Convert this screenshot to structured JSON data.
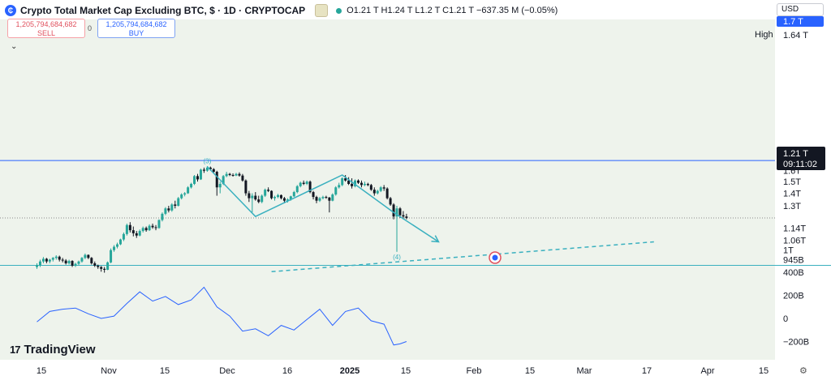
{
  "header": {
    "logo_icon": "crypto-cap-logo-icon",
    "title": "Crypto Total Market Cap Excluding BTC, $ · 1D · CRYPTOCAP",
    "ohlc": "O1.21 T  H1.24 T  L1.2 T  C1.21 T  −637.35 M (−0.05%)"
  },
  "trade": {
    "sell_value": "1,205,794,684,682",
    "sell_label": "SELL",
    "spread": "0",
    "buy_value": "1,205,794,684,682",
    "buy_label": "BUY"
  },
  "currency": "USD",
  "branding": {
    "mark": "17",
    "name": "TradingView"
  },
  "colors": {
    "up": "#26a69a",
    "down": "#131722",
    "trend": "#3ab0bf",
    "background": "#eef3ec",
    "axis_text": "#131722",
    "current_price_bg": "#131722"
  },
  "chart_data": [
    {
      "type": "candlestick",
      "price_axis": {
        "ticks": [
          "1.6T",
          "1.5T",
          "1.4T",
          "1.3T",
          "1.14T",
          "1.06T",
          "1T",
          "945B"
        ],
        "scale": "log"
      },
      "price_labels": {
        "top_clipped": "1.7 T",
        "high_value": "1.64 T",
        "high_text": "High",
        "current_price": "1.21 T",
        "countdown": "09:11:02"
      },
      "x_axis": {
        "ticks": [
          "15",
          "Nov",
          "15",
          "Dec",
          "16",
          "2025",
          "15",
          "Feb",
          "15",
          "Mar",
          "17",
          "Apr",
          "15"
        ],
        "bold": [
          "2025"
        ]
      },
      "wave_labels": [
        {
          "text": "(3)",
          "date": "2024-12-06"
        },
        {
          "text": "(4)",
          "date": "2025-02-03"
        }
      ],
      "candles": [
        {
          "date": "2024-10-14",
          "o": 0.905,
          "h": 0.925,
          "l": 0.895,
          "c": 0.915
        },
        {
          "date": "2024-10-15",
          "o": 0.915,
          "h": 0.945,
          "l": 0.905,
          "c": 0.935
        },
        {
          "date": "2024-10-16",
          "o": 0.935,
          "h": 0.96,
          "l": 0.925,
          "c": 0.95
        },
        {
          "date": "2024-10-17",
          "o": 0.95,
          "h": 0.955,
          "l": 0.925,
          "c": 0.935
        },
        {
          "date": "2024-10-18",
          "o": 0.935,
          "h": 0.95,
          "l": 0.925,
          "c": 0.945
        },
        {
          "date": "2024-10-19",
          "o": 0.945,
          "h": 0.96,
          "l": 0.935,
          "c": 0.955
        },
        {
          "date": "2024-10-20",
          "o": 0.955,
          "h": 0.97,
          "l": 0.945,
          "c": 0.962
        },
        {
          "date": "2024-10-21",
          "o": 0.962,
          "h": 0.968,
          "l": 0.935,
          "c": 0.945
        },
        {
          "date": "2024-10-22",
          "o": 0.945,
          "h": 0.955,
          "l": 0.93,
          "c": 0.94
        },
        {
          "date": "2024-10-23",
          "o": 0.94,
          "h": 0.948,
          "l": 0.918,
          "c": 0.925
        },
        {
          "date": "2024-10-24",
          "o": 0.925,
          "h": 0.945,
          "l": 0.918,
          "c": 0.938
        },
        {
          "date": "2024-10-25",
          "o": 0.938,
          "h": 0.942,
          "l": 0.905,
          "c": 0.912
        },
        {
          "date": "2024-10-26",
          "o": 0.912,
          "h": 0.928,
          "l": 0.905,
          "c": 0.922
        },
        {
          "date": "2024-10-27",
          "o": 0.922,
          "h": 0.94,
          "l": 0.915,
          "c": 0.935
        },
        {
          "date": "2024-10-28",
          "o": 0.935,
          "h": 0.96,
          "l": 0.928,
          "c": 0.955
        },
        {
          "date": "2024-10-29",
          "o": 0.955,
          "h": 0.98,
          "l": 0.948,
          "c": 0.972
        },
        {
          "date": "2024-10-30",
          "o": 0.972,
          "h": 0.975,
          "l": 0.948,
          "c": 0.955
        },
        {
          "date": "2024-10-31",
          "o": 0.955,
          "h": 0.96,
          "l": 0.918,
          "c": 0.925
        },
        {
          "date": "2024-11-01",
          "o": 0.925,
          "h": 0.935,
          "l": 0.905,
          "c": 0.912
        },
        {
          "date": "2024-11-02",
          "o": 0.912,
          "h": 0.918,
          "l": 0.895,
          "c": 0.905
        },
        {
          "date": "2024-11-03",
          "o": 0.905,
          "h": 0.91,
          "l": 0.88,
          "c": 0.895
        },
        {
          "date": "2024-11-04",
          "o": 0.895,
          "h": 0.905,
          "l": 0.875,
          "c": 0.89
        },
        {
          "date": "2024-11-05",
          "o": 0.89,
          "h": 0.935,
          "l": 0.888,
          "c": 0.93
        },
        {
          "date": "2024-11-06",
          "o": 0.93,
          "h": 1.01,
          "l": 0.925,
          "c": 1.0
        },
        {
          "date": "2024-11-07",
          "o": 1.0,
          "h": 1.03,
          "l": 0.99,
          "c": 1.02
        },
        {
          "date": "2024-11-08",
          "o": 1.02,
          "h": 1.045,
          "l": 1.01,
          "c": 1.035
        },
        {
          "date": "2024-11-09",
          "o": 1.035,
          "h": 1.07,
          "l": 1.03,
          "c": 1.065
        },
        {
          "date": "2024-11-10",
          "o": 1.065,
          "h": 1.11,
          "l": 1.055,
          "c": 1.1
        },
        {
          "date": "2024-11-11",
          "o": 1.1,
          "h": 1.17,
          "l": 1.09,
          "c": 1.16
        },
        {
          "date": "2024-11-12",
          "o": 1.16,
          "h": 1.18,
          "l": 1.11,
          "c": 1.125
        },
        {
          "date": "2024-11-13",
          "o": 1.125,
          "h": 1.15,
          "l": 1.085,
          "c": 1.105
        },
        {
          "date": "2024-11-14",
          "o": 1.105,
          "h": 1.12,
          "l": 1.075,
          "c": 1.09
        },
        {
          "date": "2024-11-15",
          "o": 1.09,
          "h": 1.13,
          "l": 1.085,
          "c": 1.12
        },
        {
          "date": "2024-11-16",
          "o": 1.12,
          "h": 1.15,
          "l": 1.11,
          "c": 1.14
        },
        {
          "date": "2024-11-17",
          "o": 1.14,
          "h": 1.15,
          "l": 1.115,
          "c": 1.125
        },
        {
          "date": "2024-11-18",
          "o": 1.125,
          "h": 1.165,
          "l": 1.12,
          "c": 1.155
        },
        {
          "date": "2024-11-19",
          "o": 1.155,
          "h": 1.17,
          "l": 1.135,
          "c": 1.145
        },
        {
          "date": "2024-11-20",
          "o": 1.145,
          "h": 1.16,
          "l": 1.125,
          "c": 1.14
        },
        {
          "date": "2024-11-21",
          "o": 1.14,
          "h": 1.2,
          "l": 1.135,
          "c": 1.195
        },
        {
          "date": "2024-11-22",
          "o": 1.195,
          "h": 1.25,
          "l": 1.185,
          "c": 1.24
        },
        {
          "date": "2024-11-23",
          "o": 1.24,
          "h": 1.29,
          "l": 1.23,
          "c": 1.28
        },
        {
          "date": "2024-11-24",
          "o": 1.28,
          "h": 1.3,
          "l": 1.25,
          "c": 1.265
        },
        {
          "date": "2024-11-25",
          "o": 1.265,
          "h": 1.32,
          "l": 1.255,
          "c": 1.31
        },
        {
          "date": "2024-11-26",
          "o": 1.31,
          "h": 1.34,
          "l": 1.28,
          "c": 1.3
        },
        {
          "date": "2024-11-27",
          "o": 1.3,
          "h": 1.37,
          "l": 1.295,
          "c": 1.36
        },
        {
          "date": "2024-11-28",
          "o": 1.36,
          "h": 1.4,
          "l": 1.35,
          "c": 1.39
        },
        {
          "date": "2024-11-29",
          "o": 1.39,
          "h": 1.41,
          "l": 1.375,
          "c": 1.4
        },
        {
          "date": "2024-11-30",
          "o": 1.4,
          "h": 1.46,
          "l": 1.395,
          "c": 1.45
        },
        {
          "date": "2024-12-01",
          "o": 1.45,
          "h": 1.49,
          "l": 1.44,
          "c": 1.48
        },
        {
          "date": "2024-12-02",
          "o": 1.48,
          "h": 1.56,
          "l": 1.47,
          "c": 1.55
        },
        {
          "date": "2024-12-03",
          "o": 1.55,
          "h": 1.57,
          "l": 1.5,
          "c": 1.52
        },
        {
          "date": "2024-12-04",
          "o": 1.52,
          "h": 1.62,
          "l": 1.515,
          "c": 1.61
        },
        {
          "date": "2024-12-05",
          "o": 1.61,
          "h": 1.63,
          "l": 1.58,
          "c": 1.6
        },
        {
          "date": "2024-12-06",
          "o": 1.6,
          "h": 1.645,
          "l": 1.59,
          "c": 1.63
        },
        {
          "date": "2024-12-07",
          "o": 1.63,
          "h": 1.64,
          "l": 1.6,
          "c": 1.615
        },
        {
          "date": "2024-12-08",
          "o": 1.615,
          "h": 1.625,
          "l": 1.58,
          "c": 1.59
        },
        {
          "date": "2024-12-09",
          "o": 1.59,
          "h": 1.6,
          "l": 1.38,
          "c": 1.45
        },
        {
          "date": "2024-12-10",
          "o": 1.45,
          "h": 1.5,
          "l": 1.4,
          "c": 1.48
        },
        {
          "date": "2024-12-11",
          "o": 1.48,
          "h": 1.56,
          "l": 1.47,
          "c": 1.55
        },
        {
          "date": "2024-12-12",
          "o": 1.55,
          "h": 1.59,
          "l": 1.54,
          "c": 1.57
        },
        {
          "date": "2024-12-13",
          "o": 1.57,
          "h": 1.58,
          "l": 1.55,
          "c": 1.56
        },
        {
          "date": "2024-12-14",
          "o": 1.56,
          "h": 1.575,
          "l": 1.545,
          "c": 1.555
        },
        {
          "date": "2024-12-15",
          "o": 1.555,
          "h": 1.58,
          "l": 1.55,
          "c": 1.57
        },
        {
          "date": "2024-12-16",
          "o": 1.57,
          "h": 1.585,
          "l": 1.545,
          "c": 1.555
        },
        {
          "date": "2024-12-17",
          "o": 1.555,
          "h": 1.57,
          "l": 1.5,
          "c": 1.51
        },
        {
          "date": "2024-12-18",
          "o": 1.51,
          "h": 1.52,
          "l": 1.38,
          "c": 1.4
        },
        {
          "date": "2024-12-19",
          "o": 1.4,
          "h": 1.42,
          "l": 1.33,
          "c": 1.36
        },
        {
          "date": "2024-12-20",
          "o": 1.36,
          "h": 1.4,
          "l": 1.25,
          "c": 1.38
        },
        {
          "date": "2024-12-21",
          "o": 1.38,
          "h": 1.41,
          "l": 1.34,
          "c": 1.35
        },
        {
          "date": "2024-12-22",
          "o": 1.35,
          "h": 1.38,
          "l": 1.32,
          "c": 1.33
        },
        {
          "date": "2024-12-23",
          "o": 1.33,
          "h": 1.39,
          "l": 1.32,
          "c": 1.38
        },
        {
          "date": "2024-12-24",
          "o": 1.38,
          "h": 1.44,
          "l": 1.37,
          "c": 1.43
        },
        {
          "date": "2024-12-25",
          "o": 1.43,
          "h": 1.45,
          "l": 1.41,
          "c": 1.42
        },
        {
          "date": "2024-12-26",
          "o": 1.42,
          "h": 1.425,
          "l": 1.35,
          "c": 1.36
        },
        {
          "date": "2024-12-27",
          "o": 1.36,
          "h": 1.38,
          "l": 1.34,
          "c": 1.37
        },
        {
          "date": "2024-12-28",
          "o": 1.37,
          "h": 1.395,
          "l": 1.36,
          "c": 1.385
        },
        {
          "date": "2024-12-29",
          "o": 1.385,
          "h": 1.39,
          "l": 1.35,
          "c": 1.36
        },
        {
          "date": "2024-12-30",
          "o": 1.36,
          "h": 1.37,
          "l": 1.32,
          "c": 1.34
        },
        {
          "date": "2024-12-31",
          "o": 1.34,
          "h": 1.36,
          "l": 1.325,
          "c": 1.35
        },
        {
          "date": "2025-01-01",
          "o": 1.35,
          "h": 1.38,
          "l": 1.34,
          "c": 1.375
        },
        {
          "date": "2025-01-02",
          "o": 1.375,
          "h": 1.42,
          "l": 1.37,
          "c": 1.41
        },
        {
          "date": "2025-01-03",
          "o": 1.41,
          "h": 1.47,
          "l": 1.4,
          "c": 1.46
        },
        {
          "date": "2025-01-04",
          "o": 1.46,
          "h": 1.5,
          "l": 1.45,
          "c": 1.49
        },
        {
          "date": "2025-01-05",
          "o": 1.49,
          "h": 1.51,
          "l": 1.47,
          "c": 1.48
        },
        {
          "date": "2025-01-06",
          "o": 1.48,
          "h": 1.51,
          "l": 1.47,
          "c": 1.5
        },
        {
          "date": "2025-01-07",
          "o": 1.5,
          "h": 1.51,
          "l": 1.4,
          "c": 1.41
        },
        {
          "date": "2025-01-08",
          "o": 1.41,
          "h": 1.42,
          "l": 1.35,
          "c": 1.37
        },
        {
          "date": "2025-01-09",
          "o": 1.37,
          "h": 1.38,
          "l": 1.32,
          "c": 1.34
        },
        {
          "date": "2025-01-10",
          "o": 1.34,
          "h": 1.37,
          "l": 1.33,
          "c": 1.36
        },
        {
          "date": "2025-01-11",
          "o": 1.36,
          "h": 1.38,
          "l": 1.35,
          "c": 1.37
        },
        {
          "date": "2025-01-12",
          "o": 1.37,
          "h": 1.38,
          "l": 1.355,
          "c": 1.365
        },
        {
          "date": "2025-01-13",
          "o": 1.365,
          "h": 1.37,
          "l": 1.25,
          "c": 1.34
        },
        {
          "date": "2025-01-14",
          "o": 1.34,
          "h": 1.4,
          "l": 1.335,
          "c": 1.39
        },
        {
          "date": "2025-01-15",
          "o": 1.39,
          "h": 1.46,
          "l": 1.38,
          "c": 1.45
        },
        {
          "date": "2025-01-16",
          "o": 1.45,
          "h": 1.49,
          "l": 1.44,
          "c": 1.47
        },
        {
          "date": "2025-01-17",
          "o": 1.47,
          "h": 1.54,
          "l": 1.46,
          "c": 1.53
        },
        {
          "date": "2025-01-18",
          "o": 1.53,
          "h": 1.56,
          "l": 1.5,
          "c": 1.51
        },
        {
          "date": "2025-01-19",
          "o": 1.51,
          "h": 1.54,
          "l": 1.47,
          "c": 1.48
        },
        {
          "date": "2025-01-20",
          "o": 1.48,
          "h": 1.53,
          "l": 1.44,
          "c": 1.46
        },
        {
          "date": "2025-01-21",
          "o": 1.46,
          "h": 1.52,
          "l": 1.45,
          "c": 1.51
        },
        {
          "date": "2025-01-22",
          "o": 1.51,
          "h": 1.52,
          "l": 1.48,
          "c": 1.49
        },
        {
          "date": "2025-01-23",
          "o": 1.49,
          "h": 1.51,
          "l": 1.45,
          "c": 1.47
        },
        {
          "date": "2025-01-24",
          "o": 1.47,
          "h": 1.5,
          "l": 1.46,
          "c": 1.48
        },
        {
          "date": "2025-01-25",
          "o": 1.48,
          "h": 1.49,
          "l": 1.46,
          "c": 1.47
        },
        {
          "date": "2025-01-26",
          "o": 1.47,
          "h": 1.48,
          "l": 1.42,
          "c": 1.43
        },
        {
          "date": "2025-01-27",
          "o": 1.43,
          "h": 1.45,
          "l": 1.38,
          "c": 1.4
        },
        {
          "date": "2025-01-28",
          "o": 1.4,
          "h": 1.43,
          "l": 1.39,
          "c": 1.42
        },
        {
          "date": "2025-01-29",
          "o": 1.42,
          "h": 1.46,
          "l": 1.41,
          "c": 1.45
        },
        {
          "date": "2025-01-30",
          "o": 1.45,
          "h": 1.47,
          "l": 1.42,
          "c": 1.44
        },
        {
          "date": "2025-01-31",
          "o": 1.44,
          "h": 1.45,
          "l": 1.35,
          "c": 1.36
        },
        {
          "date": "2025-02-01",
          "o": 1.36,
          "h": 1.37,
          "l": 1.3,
          "c": 1.31
        },
        {
          "date": "2025-02-02",
          "o": 1.31,
          "h": 1.32,
          "l": 1.2,
          "c": 1.22
        },
        {
          "date": "2025-02-03",
          "o": 1.22,
          "h": 1.3,
          "l": 0.99,
          "c": 1.28
        },
        {
          "date": "2025-02-04",
          "o": 1.28,
          "h": 1.29,
          "l": 1.21,
          "c": 1.23
        },
        {
          "date": "2025-02-05",
          "o": 1.23,
          "h": 1.26,
          "l": 1.2,
          "c": 1.22
        },
        {
          "date": "2025-02-06",
          "o": 1.22,
          "h": 1.24,
          "l": 1.2,
          "c": 1.21
        }
      ],
      "trend_lines": [
        {
          "points": [
            {
              "date": "2024-12-06",
              "value": 1.64
            },
            {
              "date": "2024-12-21",
              "value": 1.22
            },
            {
              "date": "2025-01-17",
              "value": 1.56
            },
            {
              "date": "2025-02-02",
              "value": 1.25
            },
            {
              "date": "2025-02-16",
              "value": 1.05
            }
          ],
          "style": "solid",
          "arrow": true
        },
        {
          "points": [
            {
              "date": "2024-12-26",
              "value": 0.88
            },
            {
              "date": "2025-04-24",
              "value": 1.05
            }
          ],
          "style": "dashed"
        }
      ],
      "horizontal_line": {
        "value": 1.7
      },
      "current_price_line": {
        "value": 1.21
      }
    },
    {
      "type": "line",
      "axis": {
        "ticks": [
          "400B",
          "200B",
          "0",
          "−200B"
        ]
      },
      "x": [
        "2024-10-14",
        "2024-10-18",
        "2024-10-22",
        "2024-10-26",
        "2024-10-30",
        "2024-11-03",
        "2024-11-07",
        "2024-11-11",
        "2024-11-15",
        "2024-11-19",
        "2024-11-23",
        "2024-11-27",
        "2024-12-01",
        "2024-12-05",
        "2024-12-09",
        "2024-12-13",
        "2024-12-17",
        "2024-12-21",
        "2024-12-25",
        "2024-12-29",
        "2025-01-02",
        "2025-01-06",
        "2025-01-10",
        "2025-01-14",
        "2025-01-18",
        "2025-01-22",
        "2025-01-26",
        "2025-01-30",
        "2025-02-02",
        "2025-02-04",
        "2025-02-06"
      ],
      "values": [
        -30,
        60,
        80,
        90,
        40,
        0,
        20,
        130,
        230,
        150,
        190,
        120,
        160,
        270,
        100,
        20,
        -110,
        -90,
        -150,
        -60,
        -100,
        -10,
        80,
        -60,
        60,
        90,
        -20,
        -50,
        -230,
        -220,
        -200
      ]
    }
  ]
}
